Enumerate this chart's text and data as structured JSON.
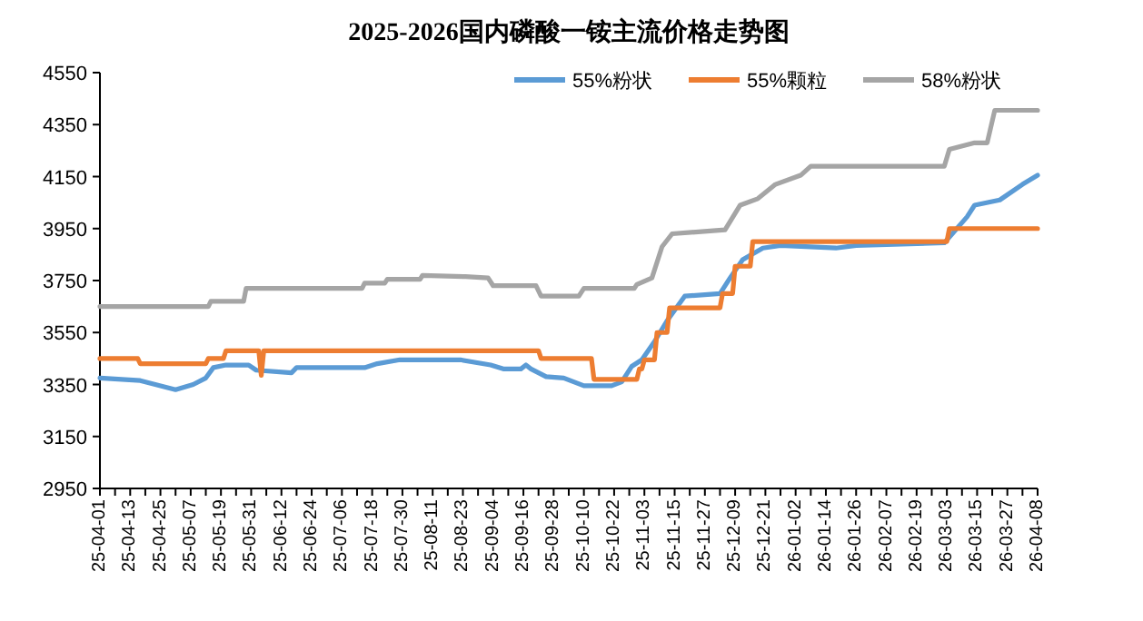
{
  "chart_data": {
    "type": "line",
    "title": "2025-2026国内磷酸一铵主流价格走势图",
    "legend": "top right",
    "xlim": [
      "2025-04-01",
      "2026-04-08"
    ],
    "ylim": [
      2950,
      4550
    ],
    "yticks": [
      2950,
      3150,
      3350,
      3550,
      3750,
      3950,
      4150,
      4350,
      4550
    ],
    "xticks": [
      {
        "value": "2025-04-01",
        "label": "25-04-01"
      },
      {
        "value": "2025-04-07",
        "label": null
      },
      {
        "value": "2025-04-13",
        "label": "25-04-13"
      },
      {
        "value": "2025-04-19",
        "label": null
      },
      {
        "value": "2025-04-25",
        "label": "25-04-25"
      },
      {
        "value": "2025-05-01",
        "label": null
      },
      {
        "value": "2025-05-07",
        "label": "25-05-07"
      },
      {
        "value": "2025-05-13",
        "label": null
      },
      {
        "value": "2025-05-19",
        "label": "25-05-19"
      },
      {
        "value": "2025-05-25",
        "label": null
      },
      {
        "value": "2025-05-31",
        "label": "25-05-31"
      },
      {
        "value": "2025-06-06",
        "label": null
      },
      {
        "value": "2025-06-12",
        "label": "25-06-12"
      },
      {
        "value": "2025-06-18",
        "label": null
      },
      {
        "value": "2025-06-24",
        "label": "25-06-24"
      },
      {
        "value": "2025-06-30",
        "label": null
      },
      {
        "value": "2025-07-06",
        "label": "25-07-06"
      },
      {
        "value": "2025-07-12",
        "label": null
      },
      {
        "value": "2025-07-18",
        "label": "25-07-18"
      },
      {
        "value": "2025-07-24",
        "label": null
      },
      {
        "value": "2025-07-30",
        "label": "25-07-30"
      },
      {
        "value": "2025-08-05",
        "label": null
      },
      {
        "value": "2025-08-11",
        "label": "25-08-11"
      },
      {
        "value": "2025-08-17",
        "label": null
      },
      {
        "value": "2025-08-23",
        "label": "25-08-23"
      },
      {
        "value": "2025-08-29",
        "label": null
      },
      {
        "value": "2025-09-04",
        "label": "25-09-04"
      },
      {
        "value": "2025-09-10",
        "label": null
      },
      {
        "value": "2025-09-16",
        "label": "25-09-16"
      },
      {
        "value": "2025-09-22",
        "label": null
      },
      {
        "value": "2025-09-28",
        "label": "25-09-28"
      },
      {
        "value": "2025-10-04",
        "label": null
      },
      {
        "value": "2025-10-10",
        "label": "25-10-10"
      },
      {
        "value": "2025-10-16",
        "label": null
      },
      {
        "value": "2025-10-22",
        "label": "25-10-22"
      },
      {
        "value": "2025-10-28",
        "label": null
      },
      {
        "value": "2025-11-03",
        "label": "25-11-03"
      },
      {
        "value": "2025-11-09",
        "label": null
      },
      {
        "value": "2025-11-15",
        "label": "25-11-15"
      },
      {
        "value": "2025-11-21",
        "label": null
      },
      {
        "value": "2025-11-27",
        "label": "25-11-27"
      },
      {
        "value": "2025-12-03",
        "label": null
      },
      {
        "value": "2025-12-09",
        "label": "25-12-09"
      },
      {
        "value": "2025-12-15",
        "label": null
      },
      {
        "value": "2025-12-21",
        "label": "25-12-21"
      },
      {
        "value": "2025-12-27",
        "label": null
      },
      {
        "value": "2026-01-02",
        "label": "26-01-02"
      },
      {
        "value": "2026-01-08",
        "label": null
      },
      {
        "value": "2026-01-14",
        "label": "26-01-14"
      },
      {
        "value": "2026-01-20",
        "label": null
      },
      {
        "value": "2026-01-26",
        "label": "26-01-26"
      },
      {
        "value": "2026-02-01",
        "label": null
      },
      {
        "value": "2026-02-07",
        "label": "26-02-07"
      },
      {
        "value": "2026-02-13",
        "label": null
      },
      {
        "value": "2026-02-19",
        "label": "26-02-19"
      },
      {
        "value": "2026-02-25",
        "label": null
      },
      {
        "value": "2026-03-03",
        "label": "26-03-03"
      },
      {
        "value": "2026-03-09",
        "label": null
      },
      {
        "value": "2026-03-15",
        "label": "26-03-15"
      },
      {
        "value": "2026-03-21",
        "label": null
      },
      {
        "value": "2026-03-27",
        "label": "26-03-27"
      },
      {
        "value": "2026-04-02",
        "label": null
      },
      {
        "value": "2026-04-08",
        "label": "26-04-08"
      }
    ],
    "series": [
      {
        "name": "55%粉状",
        "color": "#5b9bd5",
        "x": [
          "2025-04-01",
          "2025-04-17",
          "2025-05-01",
          "2025-05-08",
          "2025-05-13",
          "2025-05-16",
          "2025-05-21",
          "2025-05-30",
          "2025-06-02",
          "2025-06-16",
          "2025-06-18",
          "2025-07-15",
          "2025-07-20",
          "2025-07-29",
          "2025-08-22",
          "2025-09-03",
          "2025-09-08",
          "2025-09-15",
          "2025-09-17",
          "2025-09-19",
          "2025-09-25",
          "2025-10-02",
          "2025-10-10",
          "2025-10-21",
          "2025-10-25",
          "2025-10-29",
          "2025-11-02",
          "2025-11-07",
          "2025-11-12",
          "2025-11-19",
          "2025-12-03",
          "2025-12-07",
          "2025-12-12",
          "2025-12-20",
          "2025-12-27",
          "2026-01-18",
          "2026-01-26",
          "2026-03-02",
          "2026-03-11",
          "2026-03-14",
          "2026-03-24",
          "2026-04-02",
          "2026-04-08"
        ],
        "values": [
          3375,
          3365,
          3330,
          3350,
          3375,
          3415,
          3425,
          3425,
          3405,
          3395,
          3415,
          3415,
          3430,
          3445,
          3445,
          3425,
          3410,
          3410,
          3425,
          3410,
          3380,
          3375,
          3345,
          3345,
          3360,
          3420,
          3445,
          3515,
          3595,
          3690,
          3700,
          3760,
          3830,
          3875,
          3885,
          3875,
          3885,
          3895,
          3995,
          4040,
          4060,
          4120,
          4155
        ]
      },
      {
        "name": "55%颗粒",
        "color": "#ed7d31",
        "x": [
          "2025-04-01",
          "2025-04-16",
          "2025-04-17",
          "2025-05-13",
          "2025-05-14",
          "2025-05-20",
          "2025-05-21",
          "2025-06-03",
          "2025-06-04",
          "2025-06-05",
          "2025-09-22",
          "2025-09-23",
          "2025-10-13",
          "2025-10-14",
          "2025-10-31",
          "2025-11-01",
          "2025-11-02",
          "2025-11-03",
          "2025-11-07",
          "2025-11-08",
          "2025-11-12",
          "2025-11-13",
          "2025-12-03",
          "2025-12-04",
          "2025-12-08",
          "2025-12-09",
          "2025-12-15",
          "2025-12-16",
          "2026-03-03",
          "2026-03-04",
          "2026-04-08"
        ],
        "values": [
          3450,
          3450,
          3430,
          3430,
          3450,
          3450,
          3480,
          3480,
          3385,
          3480,
          3480,
          3450,
          3450,
          3370,
          3370,
          3410,
          3410,
          3445,
          3445,
          3550,
          3550,
          3645,
          3645,
          3700,
          3700,
          3805,
          3805,
          3900,
          3900,
          3950,
          3950
        ]
      },
      {
        "name": "58%粉状",
        "color": "#a5a5a5",
        "x": [
          "2025-04-01",
          "2025-05-14",
          "2025-05-15",
          "2025-05-28",
          "2025-05-29",
          "2025-07-14",
          "2025-07-15",
          "2025-07-23",
          "2025-07-24",
          "2025-08-06",
          "2025-08-07",
          "2025-08-24",
          "2025-09-02",
          "2025-09-04",
          "2025-09-21",
          "2025-09-23",
          "2025-10-08",
          "2025-10-10",
          "2025-10-30",
          "2025-10-31",
          "2025-11-06",
          "2025-11-10",
          "2025-11-14",
          "2025-12-05",
          "2025-12-11",
          "2025-12-18",
          "2025-12-25",
          "2026-01-04",
          "2026-01-08",
          "2026-03-02",
          "2026-03-04",
          "2026-03-14",
          "2026-03-19",
          "2026-03-22",
          "2026-04-08"
        ],
        "values": [
          3650,
          3650,
          3670,
          3670,
          3720,
          3720,
          3740,
          3740,
          3755,
          3755,
          3770,
          3765,
          3760,
          3730,
          3730,
          3690,
          3690,
          3720,
          3720,
          3735,
          3760,
          3880,
          3930,
          3945,
          4040,
          4065,
          4120,
          4155,
          4190,
          4190,
          4255,
          4280,
          4280,
          4405,
          4405
        ]
      }
    ]
  }
}
